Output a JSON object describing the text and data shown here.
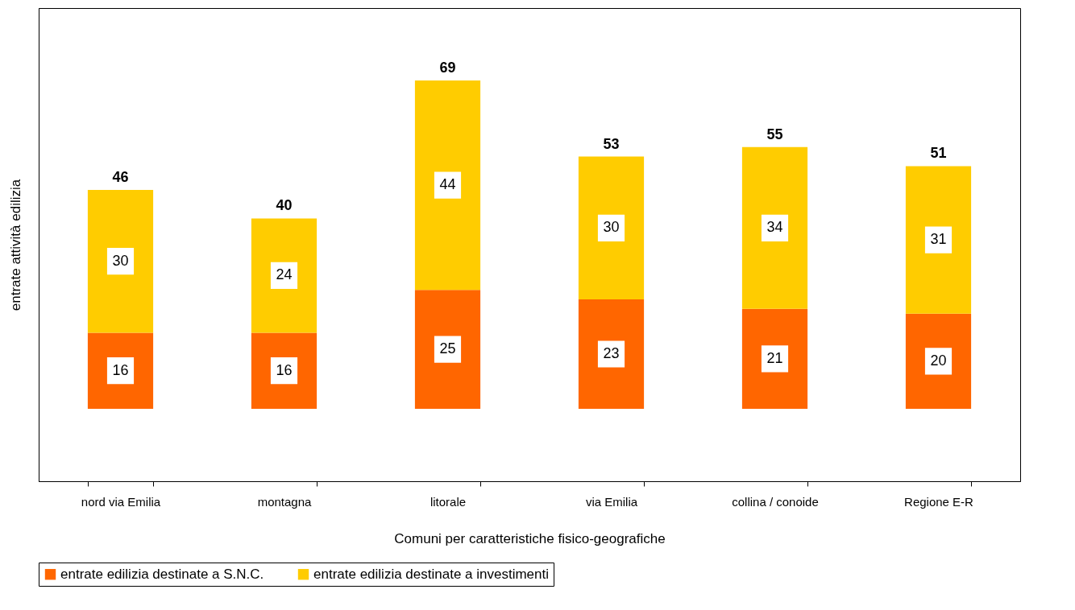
{
  "chart_data": {
    "type": "bar",
    "stacked": true,
    "data_labels": true,
    "legend": "bottom",
    "xlabel": "Comuni per caratteristiche fisico-geografiche",
    "ylabel": "entrate attività edilizia",
    "categories": [
      "nord via Emilia",
      "montagna",
      "litorale",
      "via Emilia",
      "collina / conoide",
      "Regione E-R"
    ],
    "series": [
      {
        "name": "entrate edilizia destinate a S.N.C.",
        "color": "#ff6600",
        "values": [
          16,
          16,
          25,
          23,
          21,
          20
        ]
      },
      {
        "name": "entrate edilizia destinate a investimenti",
        "color": "#ffcc00",
        "values": [
          30,
          24,
          44,
          30,
          34,
          31
        ]
      }
    ],
    "totals": [
      "46",
      "40",
      "69",
      "53",
      "55",
      "51"
    ]
  }
}
